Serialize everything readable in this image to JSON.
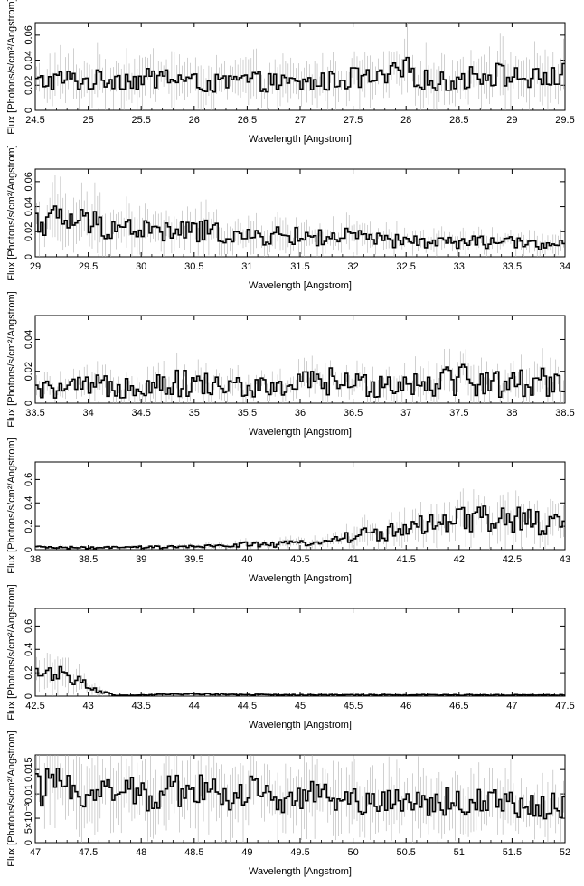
{
  "chart_data": [
    {
      "type": "line",
      "xlabel": "Wavelength [Angstrom]",
      "ylabel": "Flux [Photons/s/cm²/Angstrom]",
      "xlim": [
        24.5,
        29.5
      ],
      "ylim": [
        0,
        0.07
      ],
      "xticks": [
        "24.5",
        "25",
        "25.5",
        "26",
        "26.5",
        "27",
        "27.5",
        "28",
        "28.5",
        "29",
        "29.5"
      ],
      "yticks": [
        "0",
        "0.02",
        "0.04",
        "0.06"
      ],
      "series": [
        {
          "x": [
            24.5,
            24.75,
            25.0,
            25.25,
            25.5,
            25.75,
            26.0,
            26.25,
            26.5,
            26.75,
            27.0,
            27.25,
            27.5,
            27.75,
            28.0,
            28.25,
            28.5,
            28.75,
            29.0,
            29.25,
            29.5
          ],
          "values": [
            0.022,
            0.025,
            0.023,
            0.026,
            0.024,
            0.027,
            0.022,
            0.021,
            0.024,
            0.022,
            0.021,
            0.023,
            0.026,
            0.024,
            0.032,
            0.022,
            0.024,
            0.03,
            0.027,
            0.025,
            0.028
          ]
        }
      ]
    },
    {
      "type": "line",
      "xlabel": "Wavelength [Angstrom]",
      "ylabel": "Flux [Photons/s/cm²/Angstrom]",
      "xlim": [
        29,
        34
      ],
      "ylim": [
        0,
        0.07
      ],
      "xticks": [
        "29",
        "29.5",
        "30",
        "30.5",
        "31",
        "31.5",
        "32",
        "32.5",
        "33",
        "33.5",
        "34"
      ],
      "yticks": [
        "0",
        "0.02",
        "0.04",
        "0.06"
      ],
      "series": [
        {
          "x": [
            29.0,
            29.25,
            29.5,
            29.75,
            30.0,
            30.25,
            30.5,
            30.75,
            31.0,
            31.25,
            31.5,
            31.75,
            32.0,
            32.25,
            32.5,
            32.75,
            33.0,
            33.25,
            33.5,
            33.75,
            34.0
          ],
          "values": [
            0.028,
            0.03,
            0.027,
            0.024,
            0.022,
            0.019,
            0.021,
            0.019,
            0.015,
            0.017,
            0.016,
            0.015,
            0.016,
            0.013,
            0.012,
            0.012,
            0.011,
            0.012,
            0.011,
            0.01,
            0.01
          ]
        }
      ]
    },
    {
      "type": "line",
      "xlabel": "Wavelength [Angstrom]",
      "ylabel": "Flux [Photons/s/cm²/Angstrom]",
      "xlim": [
        33.5,
        38.5
      ],
      "ylim": [
        0,
        0.055
      ],
      "xticks": [
        "33.5",
        "34",
        "34.5",
        "35",
        "35.5",
        "36",
        "36.5",
        "37",
        "37.5",
        "38",
        "38.5"
      ],
      "yticks": [
        "0",
        "0.02",
        "0.04"
      ],
      "series": [
        {
          "x": [
            33.5,
            33.75,
            34.0,
            34.25,
            34.5,
            34.75,
            35.0,
            35.25,
            35.5,
            35.75,
            36.0,
            36.25,
            36.5,
            36.75,
            37.0,
            37.25,
            37.5,
            37.75,
            38.0,
            38.25,
            38.5
          ],
          "values": [
            0.008,
            0.009,
            0.01,
            0.011,
            0.012,
            0.013,
            0.012,
            0.011,
            0.01,
            0.009,
            0.012,
            0.014,
            0.011,
            0.013,
            0.012,
            0.015,
            0.016,
            0.013,
            0.012,
            0.014,
            0.015
          ]
        }
      ]
    },
    {
      "type": "line",
      "xlabel": "Wavelength [Angstrom]",
      "ylabel": "Flux [Photons/s/cm²/Angstrom]",
      "xlim": [
        38,
        43
      ],
      "ylim": [
        0,
        0.75
      ],
      "xticks": [
        "38",
        "38.5",
        "39",
        "39.5",
        "40",
        "40.5",
        "41",
        "41.5",
        "42",
        "42.5",
        "43"
      ],
      "yticks": [
        "0",
        "0.2",
        "0.4",
        "0.6"
      ],
      "series": [
        {
          "x": [
            38.0,
            38.25,
            38.5,
            38.75,
            39.0,
            39.25,
            39.5,
            39.75,
            40.0,
            40.25,
            40.5,
            40.75,
            41.0,
            41.25,
            41.5,
            41.75,
            42.0,
            42.25,
            42.5,
            42.75,
            43.0
          ],
          "values": [
            0.02,
            0.02,
            0.015,
            0.018,
            0.02,
            0.022,
            0.025,
            0.03,
            0.05,
            0.04,
            0.06,
            0.07,
            0.12,
            0.14,
            0.18,
            0.2,
            0.24,
            0.26,
            0.25,
            0.23,
            0.2
          ]
        }
      ]
    },
    {
      "type": "line",
      "xlabel": "Wavelength [Angstrom]",
      "ylabel": "Flux [Photons/s/cm²/Angstrom]",
      "xlim": [
        42.5,
        47.5
      ],
      "ylim": [
        0,
        0.75
      ],
      "xticks": [
        "42.5",
        "43",
        "43.5",
        "44",
        "44.5",
        "45",
        "45.5",
        "46",
        "46.5",
        "47",
        "47.5"
      ],
      "yticks": [
        "0",
        "0.2",
        "0.4",
        "0.6"
      ],
      "series": [
        {
          "x": [
            42.5,
            42.75,
            43.0,
            43.25,
            43.5,
            43.75,
            44.0,
            44.25,
            44.5,
            44.75,
            45.0,
            45.25,
            45.5,
            45.75,
            46.0,
            46.25,
            46.5,
            46.75,
            47.0,
            47.25,
            47.5
          ],
          "values": [
            0.18,
            0.22,
            0.08,
            0.005,
            0.008,
            0.015,
            0.02,
            0.015,
            0.012,
            0.012,
            0.01,
            0.01,
            0.01,
            0.01,
            0.01,
            0.01,
            0.01,
            0.01,
            0.01,
            0.01,
            0.01
          ]
        }
      ]
    },
    {
      "type": "line",
      "xlabel": "Wavelength [Angstrom]",
      "ylabel": "Flux [Photons/s/cm²/Angstrom]",
      "xlim": [
        47,
        52
      ],
      "ylim": [
        0,
        0.018
      ],
      "xticks": [
        "47",
        "47.5",
        "48",
        "48.5",
        "49",
        "49.5",
        "50",
        "50.5",
        "51",
        "51.5",
        "52"
      ],
      "yticks": [
        "0",
        "5×10⁻³",
        "0.01",
        "0.015"
      ],
      "series": [
        {
          "x": [
            47.0,
            47.25,
            47.5,
            47.75,
            48.0,
            48.25,
            48.5,
            48.75,
            49.0,
            49.25,
            49.5,
            49.75,
            50.0,
            50.25,
            50.5,
            50.75,
            51.0,
            51.25,
            51.5,
            51.75,
            52.0
          ],
          "values": [
            0.011,
            0.0115,
            0.0105,
            0.011,
            0.0095,
            0.0105,
            0.0115,
            0.0095,
            0.0105,
            0.0095,
            0.0095,
            0.009,
            0.009,
            0.0085,
            0.0085,
            0.0085,
            0.0085,
            0.008,
            0.008,
            0.0075,
            0.0075
          ]
        }
      ]
    }
  ]
}
